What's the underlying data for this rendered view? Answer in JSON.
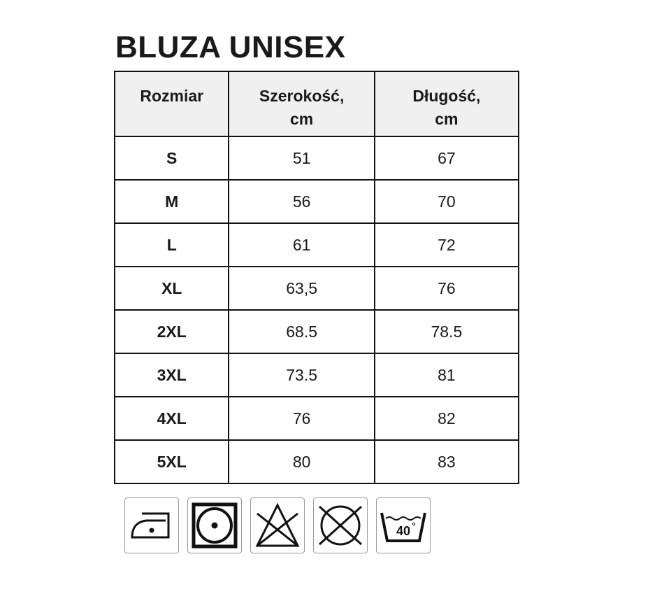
{
  "title": "BLUZA UNISEX",
  "table": {
    "headers": [
      "Rozmiar",
      "Szerokość,",
      "cm",
      "Długość,",
      "cm"
    ],
    "columns": [
      {
        "label": "Rozmiar"
      },
      {
        "label_line1": "Szerokość,",
        "label_line2": "cm"
      },
      {
        "label_line1": "Długość,",
        "label_line2": "cm"
      }
    ],
    "rows": [
      {
        "size": "S",
        "width": "51",
        "length": "67"
      },
      {
        "size": "M",
        "width": "56",
        "length": "70"
      },
      {
        "size": "L",
        "width": "61",
        "length": "72"
      },
      {
        "size": "XL",
        "width": "63,5",
        "length": "76"
      },
      {
        "size": "2XL",
        "width": "68.5",
        "length": "78.5"
      },
      {
        "size": "3XL",
        "width": "73.5",
        "length": "81"
      },
      {
        "size": "4XL",
        "width": "76",
        "length": "82"
      },
      {
        "size": "5XL",
        "width": "80",
        "length": "83"
      }
    ]
  },
  "care_icons": [
    "iron-low-heat-icon",
    "tumble-dry-low-icon",
    "do-not-bleach-icon",
    "do-not-dry-clean-icon",
    "wash-40-icon"
  ],
  "wash_temperature": "40"
}
